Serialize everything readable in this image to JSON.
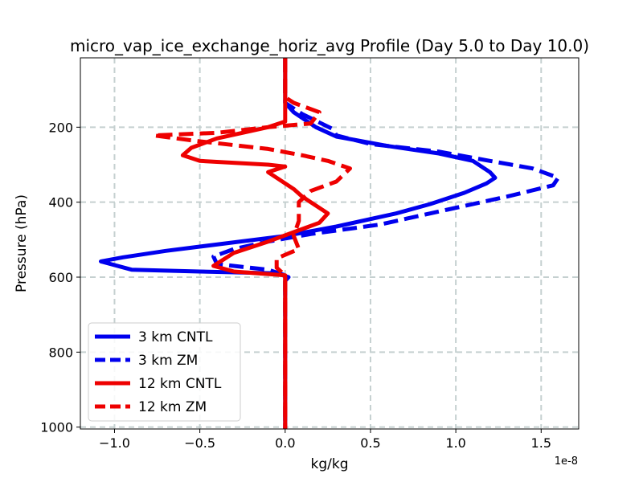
{
  "chart_data": {
    "type": "line",
    "title": "micro_vap_ice_exchange_horiz_avg Profile (Day 5.0 to Day 10.0)",
    "xlabel": "kg/kg",
    "ylabel": "Pressure (hPa)",
    "x_offset_text": "1e-8",
    "xlim": [
      -1.2,
      1.72
    ],
    "ylim": [
      1005,
      15
    ],
    "y_inverted": true,
    "x_unit_scale": 1e-08,
    "x_ticks": [
      {
        "value": -1.0,
        "label": "−1.0"
      },
      {
        "value": -0.5,
        "label": "−0.5"
      },
      {
        "value": 0.0,
        "label": "0.0"
      },
      {
        "value": 0.5,
        "label": "0.5"
      },
      {
        "value": 1.0,
        "label": "1.0"
      },
      {
        "value": 1.5,
        "label": "1.5"
      }
    ],
    "y_ticks": [
      {
        "value": 200,
        "label": "200"
      },
      {
        "value": 400,
        "label": "400"
      },
      {
        "value": 600,
        "label": "600"
      },
      {
        "value": 800,
        "label": "800"
      },
      {
        "value": 1000,
        "label": "1000"
      }
    ],
    "grid": true,
    "grid_style": "dashed",
    "grid_color": "#c5d0d0",
    "legend_position": "lower-left",
    "series": [
      {
        "name": "3 km CNTL",
        "color": "#0000ee",
        "dash": "solid",
        "points": [
          [
            0.0,
            15
          ],
          [
            0.0,
            120
          ],
          [
            0.0,
            135
          ],
          [
            0.05,
            160
          ],
          [
            0.18,
            200
          ],
          [
            0.3,
            225
          ],
          [
            0.6,
            250
          ],
          [
            0.9,
            270
          ],
          [
            1.1,
            290
          ],
          [
            1.2,
            320
          ],
          [
            1.23,
            335
          ],
          [
            1.18,
            350
          ],
          [
            1.05,
            375
          ],
          [
            0.85,
            405
          ],
          [
            0.65,
            430
          ],
          [
            0.3,
            465
          ],
          [
            0.0,
            490
          ],
          [
            -0.35,
            510
          ],
          [
            -0.7,
            530
          ],
          [
            -0.95,
            547
          ],
          [
            -1.08,
            558
          ],
          [
            -0.9,
            580
          ],
          [
            -0.5,
            585
          ],
          [
            -0.05,
            590
          ],
          [
            0.02,
            600
          ],
          [
            0.0,
            610
          ],
          [
            0.0,
            1005
          ]
        ]
      },
      {
        "name": "3 km ZM",
        "color": "#0000ee",
        "dash": "dashed",
        "points": [
          [
            0.0,
            15
          ],
          [
            0.0,
            120
          ],
          [
            0.0,
            135
          ],
          [
            0.1,
            165
          ],
          [
            0.28,
            205
          ],
          [
            0.3,
            222
          ],
          [
            0.5,
            245
          ],
          [
            0.9,
            265
          ],
          [
            1.2,
            290
          ],
          [
            1.45,
            310
          ],
          [
            1.6,
            335
          ],
          [
            1.57,
            355
          ],
          [
            1.3,
            385
          ],
          [
            0.95,
            420
          ],
          [
            0.55,
            460
          ],
          [
            0.15,
            485
          ],
          [
            -0.1,
            505
          ],
          [
            -0.3,
            525
          ],
          [
            -0.42,
            545
          ],
          [
            -0.4,
            565
          ],
          [
            -0.1,
            580
          ],
          [
            0.0,
            595
          ],
          [
            0.0,
            1005
          ]
        ]
      },
      {
        "name": "12 km CNTL",
        "color": "#ee0000",
        "dash": "solid",
        "points": [
          [
            0.0,
            15
          ],
          [
            0.0,
            185
          ],
          [
            -0.1,
            200
          ],
          [
            -0.4,
            230
          ],
          [
            -0.55,
            255
          ],
          [
            -0.6,
            275
          ],
          [
            -0.5,
            290
          ],
          [
            -0.1,
            300
          ],
          [
            0.0,
            305
          ],
          [
            -0.1,
            320
          ],
          [
            0.05,
            365
          ],
          [
            0.1,
            385
          ],
          [
            0.25,
            430
          ],
          [
            0.2,
            455
          ],
          [
            0.05,
            480
          ],
          [
            -0.1,
            505
          ],
          [
            -0.3,
            535
          ],
          [
            -0.42,
            570
          ],
          [
            -0.3,
            585
          ],
          [
            0.0,
            595
          ],
          [
            0.0,
            1005
          ]
        ]
      },
      {
        "name": "12 km ZM",
        "color": "#ee0000",
        "dash": "dashed",
        "points": [
          [
            0.0,
            15
          ],
          [
            0.0,
            120
          ],
          [
            0.05,
            135
          ],
          [
            0.2,
            160
          ],
          [
            0.15,
            190
          ],
          [
            -0.1,
            200
          ],
          [
            -0.4,
            215
          ],
          [
            -0.77,
            222
          ],
          [
            -0.55,
            235
          ],
          [
            -0.1,
            258
          ],
          [
            0.1,
            275
          ],
          [
            0.25,
            290
          ],
          [
            0.38,
            310
          ],
          [
            0.3,
            345
          ],
          [
            0.15,
            370
          ],
          [
            0.08,
            400
          ],
          [
            0.08,
            450
          ],
          [
            0.05,
            490
          ],
          [
            0.08,
            525
          ],
          [
            -0.05,
            550
          ],
          [
            -0.05,
            575
          ],
          [
            0.0,
            595
          ],
          [
            0.0,
            1005
          ]
        ]
      }
    ]
  }
}
